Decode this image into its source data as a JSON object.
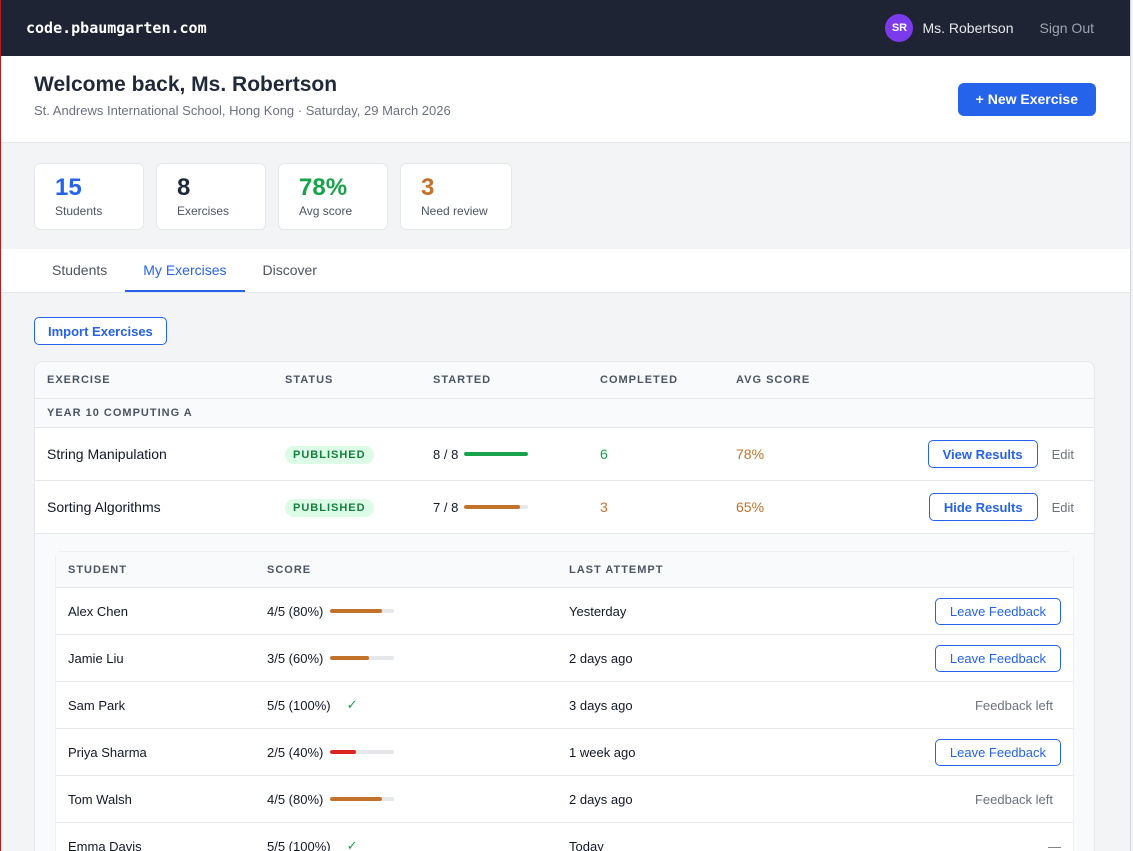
{
  "nav": {
    "brand": "code.pbaumgarten.com",
    "avatar_initials": "SR",
    "user_name": "Ms. Robertson",
    "sign_out": "Sign Out"
  },
  "header": {
    "title": "Welcome back, Ms. Robertson",
    "subtitle": "St. Andrews International School, Hong Kong · Saturday, 29 March 2026",
    "new_button": "+ New Exercise"
  },
  "stats": [
    {
      "value": "15",
      "label": "Students",
      "color": "#2563eb"
    },
    {
      "value": "8",
      "label": "Exercises",
      "color": "#1f2937"
    },
    {
      "value": "78%",
      "label": "Avg score",
      "color": "#16a34a"
    },
    {
      "value": "3",
      "label": "Need review",
      "color": "#c2722a"
    }
  ],
  "tabs": [
    "Students",
    "My Exercises",
    "Discover"
  ],
  "active_tab": "My Exercises",
  "import_button": "Import Exercises",
  "table": {
    "headers": [
      "EXERCISE",
      "STATUS",
      "STARTED",
      "COMPLETED",
      "AVG SCORE"
    ],
    "group": "YEAR 10 COMPUTING A",
    "rows": [
      {
        "name": "String Manipulation",
        "status": "PUBLISHED",
        "started": "8 / 8",
        "started_fraction": 1.0,
        "started_color": "#16a34a",
        "completed": "6",
        "completed_color": "#16a34a",
        "avg": "78%",
        "action": "View Results",
        "edit": "Edit"
      },
      {
        "name": "Sorting Algorithms",
        "status": "PUBLISHED",
        "started": "7 / 8",
        "started_fraction": 0.875,
        "started_color": "#c2722a",
        "completed": "3",
        "completed_color": "#c2722a",
        "avg": "65%",
        "action": "Hide Results",
        "edit": "Edit"
      }
    ]
  },
  "results": {
    "headers": [
      "STUDENT",
      "SCORE",
      "LAST ATTEMPT"
    ],
    "rows": [
      {
        "student": "Alex Chen",
        "score": "4/5 (80%)",
        "fraction": 0.8,
        "color": "#c2722a",
        "last": "Yesterday",
        "action": "Leave Feedback",
        "action_type": "button"
      },
      {
        "student": "Jamie Liu",
        "score": "3/5 (60%)",
        "fraction": 0.6,
        "color": "#c2722a",
        "last": "2 days ago",
        "action": "Leave Feedback",
        "action_type": "button"
      },
      {
        "student": "Sam Park",
        "score": "5/5 (100%)",
        "fraction": 1.0,
        "color": "#16a34a",
        "last": "3 days ago",
        "action": "Feedback left",
        "action_type": "text",
        "check": "✓"
      },
      {
        "student": "Priya Sharma",
        "score": "2/5 (40%)",
        "fraction": 0.4,
        "color": "#dc2626",
        "last": "1 week ago",
        "action": "Leave Feedback",
        "action_type": "button"
      },
      {
        "student": "Tom Walsh",
        "score": "4/5 (80%)",
        "fraction": 0.8,
        "color": "#c2722a",
        "last": "2 days ago",
        "action": "Feedback left",
        "action_type": "text"
      },
      {
        "student": "Emma Davis",
        "score": "5/5 (100%)",
        "fraction": 1.0,
        "color": "#16a34a",
        "last": "Today",
        "action": "—",
        "action_type": "dash",
        "check": "✓"
      }
    ]
  }
}
